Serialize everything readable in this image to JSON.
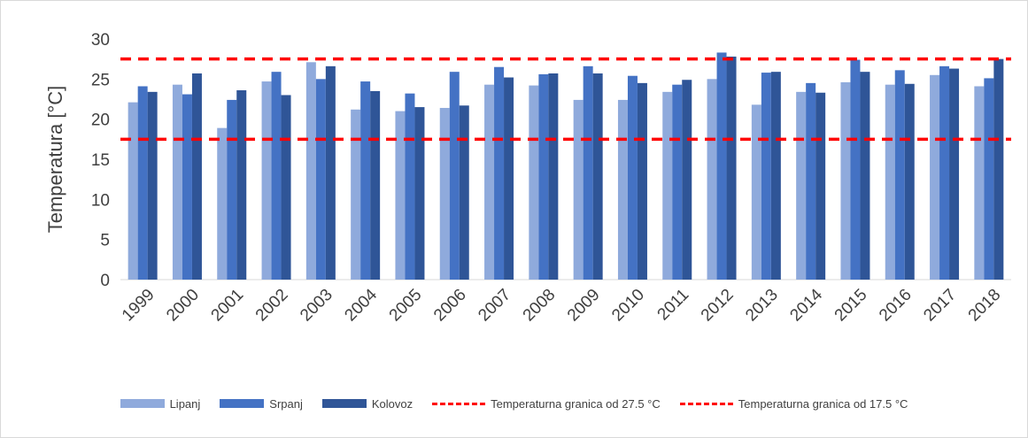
{
  "chart_data": {
    "type": "bar",
    "title": "",
    "xlabel": "",
    "ylabel": "Temperatura [°C]",
    "ylim": [
      0,
      30
    ],
    "yticks": [
      "0",
      "5",
      "10",
      "15",
      "20",
      "25",
      "30"
    ],
    "grid": false,
    "legend_position": "bottom",
    "categories": [
      "1999",
      "2000",
      "2001",
      "2002",
      "2003",
      "2004",
      "2005",
      "2006",
      "2007",
      "2008",
      "2009",
      "2010",
      "2011",
      "2012",
      "2013",
      "2014",
      "2015",
      "2016",
      "2017",
      "2018"
    ],
    "series": [
      {
        "name": "Lipanj",
        "color": "#8faadc",
        "values": [
          22.1,
          24.3,
          18.9,
          24.7,
          27.1,
          21.2,
          21.0,
          21.4,
          24.3,
          24.2,
          22.4,
          22.4,
          23.4,
          25.0,
          21.8,
          23.4,
          24.6,
          24.3,
          25.5,
          24.1
        ]
      },
      {
        "name": "Srpanj",
        "color": "#4472c4",
        "values": [
          24.1,
          23.1,
          22.4,
          25.9,
          25.0,
          24.7,
          23.2,
          25.9,
          26.5,
          25.6,
          26.6,
          25.4,
          24.3,
          28.3,
          25.8,
          24.5,
          27.4,
          26.1,
          26.6,
          25.1
        ]
      },
      {
        "name": "Kolovoz",
        "color": "#2f5597",
        "values": [
          23.4,
          25.7,
          23.6,
          23.0,
          26.6,
          23.5,
          21.5,
          21.7,
          25.2,
          25.7,
          25.7,
          24.5,
          24.9,
          27.8,
          25.9,
          23.3,
          25.9,
          24.4,
          26.3,
          27.5
        ]
      }
    ],
    "reference_lines": [
      {
        "name": "Temperaturna granica od 27.5 °C",
        "value": 27.5,
        "color": "#ff0000"
      },
      {
        "name": "Temperaturna granica od 17.5 °C",
        "value": 17.5,
        "color": "#ff0000"
      }
    ]
  }
}
